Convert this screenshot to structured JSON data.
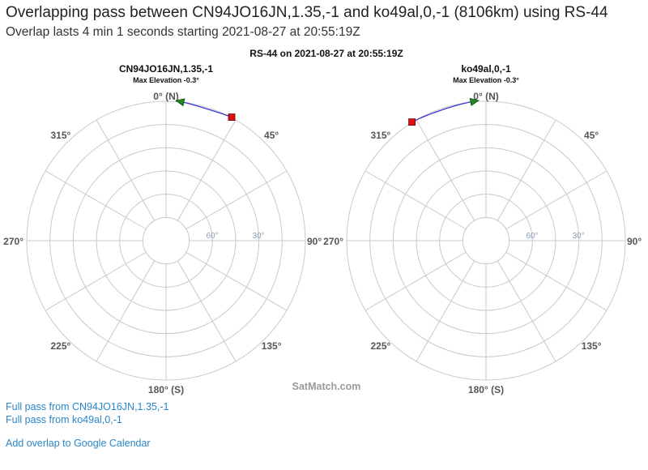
{
  "page": {
    "title": "Overlapping pass between CN94JO16JN,1.35,-1 and ko49al,0,-1 (8106km) using RS-44",
    "subtitle": "Overlap lasts 4 min 1 seconds starting 2021-08-27 at 20:55:19Z"
  },
  "figure": {
    "title": "RS-44 on 2021-08-27 at 20:55:19Z",
    "watermark": "SatMatch.com",
    "compass_labels": {
      "n": "0° (N)",
      "ne": "45°",
      "e": "90°",
      "se": "135°",
      "s": "180° (S)",
      "sw": "225°",
      "w": "270°",
      "nw": "315°"
    },
    "ring_labels": [
      "60°",
      "30°"
    ],
    "plots": [
      {
        "station": "CN94JO16JN,1.35,-1",
        "max_elevation_label": "Max Elevation -0.3°",
        "track": {
          "start_azimuth": 6,
          "end_azimuth": 28,
          "elevation": -0.3
        }
      },
      {
        "station": "ko49al,0,-1",
        "max_elevation_label": "Max Elevation -0.3°",
        "track": {
          "start_azimuth": 355,
          "end_azimuth": 328,
          "elevation": -0.3
        }
      }
    ],
    "colors": {
      "grid": "#c9c9c9",
      "label": "#555555",
      "track": "#3a3acc",
      "start_marker": "#1f8a1f",
      "end_marker": "#dd1111"
    }
  },
  "links": {
    "full_pass_1": "Full pass from CN94JO16JN,1.35,-1",
    "full_pass_2": "Full pass from ko49al,0,-1",
    "calendar": "Add overlap to Google Calendar"
  }
}
